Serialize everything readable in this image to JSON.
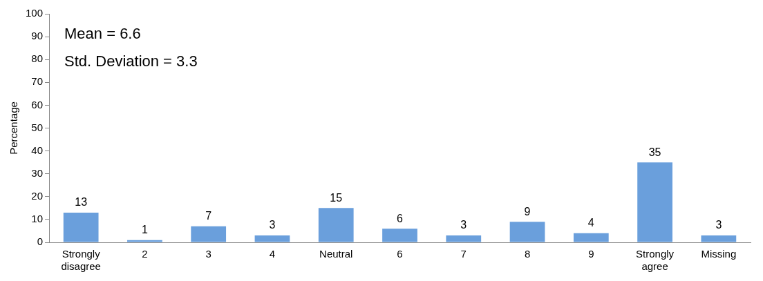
{
  "chart_data": {
    "type": "bar",
    "ylabel": "Percentage",
    "categories": [
      "Strongly disagree",
      "2",
      "3",
      "4",
      "Neutral",
      "6",
      "7",
      "8",
      "9",
      "Strongly agree",
      "Missing"
    ],
    "values": [
      13,
      1,
      7,
      3,
      15,
      6,
      3,
      9,
      4,
      35,
      3
    ],
    "color": "#6a9fdc",
    "ylim": [
      0,
      100
    ],
    "yticks": [
      0,
      10,
      20,
      30,
      40,
      50,
      60,
      70,
      80,
      90,
      100
    ],
    "grid": false,
    "legend": false,
    "data_labels": true,
    "annotations": [
      "Mean = 6.6",
      "Std. Deviation = 3.3"
    ]
  }
}
